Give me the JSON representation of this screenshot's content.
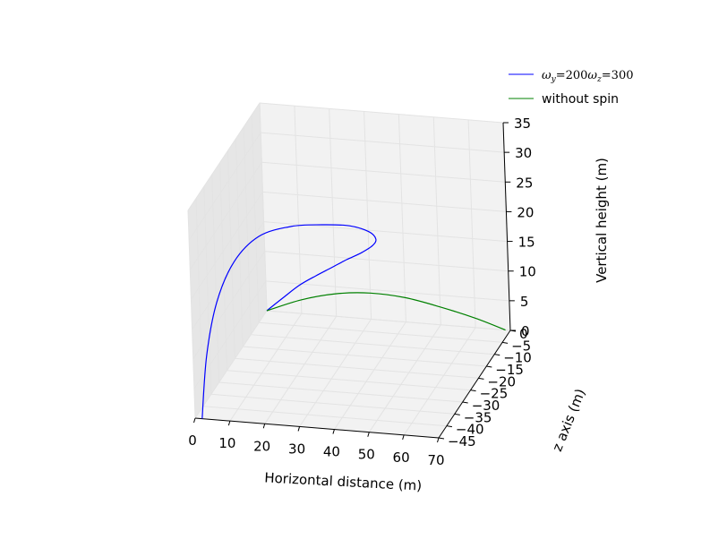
{
  "chart_data": {
    "type": "line",
    "projection": "3d",
    "title": "",
    "xlabel": "Horizontal distance (m)",
    "ylabel": "z axis (m)",
    "zlabel": "Vertical height (m)",
    "xlim": [
      0,
      70
    ],
    "ylim": [
      -45,
      0
    ],
    "zlim": [
      0,
      35
    ],
    "x_ticks": [
      "0",
      "10",
      "20",
      "30",
      "40",
      "50",
      "60",
      "70"
    ],
    "y_ticks": [
      "0",
      "−5",
      "−10",
      "−15",
      "−20",
      "−25",
      "−30",
      "−35",
      "−40",
      "−45"
    ],
    "z_ticks": [
      "0",
      "5",
      "10",
      "15",
      "20",
      "25",
      "30",
      "35"
    ],
    "grid": true,
    "legend_position": "top-right",
    "series": [
      {
        "name": "ω_y =200ω_z =300",
        "legend_label": "ωy=200ωz=300",
        "color": "#0000ff",
        "x": [
          0,
          5,
          10,
          15,
          20,
          25,
          30,
          34,
          36,
          35,
          31,
          25,
          18,
          11,
          6,
          3,
          2,
          2
        ],
        "y": [
          0,
          0,
          -0.5,
          -1,
          -2,
          -3,
          -4.5,
          -6,
          -8,
          -10,
          -13,
          -17,
          -21,
          -26,
          -31,
          -36,
          -41,
          -45
        ],
        "z": [
          0,
          2.5,
          5,
          7,
          9,
          11,
          13,
          15,
          17,
          19,
          21,
          22.5,
          23.5,
          23.5,
          21,
          16,
          9,
          0
        ]
      },
      {
        "name": "without spin",
        "color": "#008000",
        "x": [
          0,
          10,
          20,
          30,
          40,
          50,
          60,
          68.6
        ],
        "y": [
          0,
          0,
          0,
          0,
          0,
          0,
          0,
          0
        ],
        "z": [
          0,
          2.3,
          3.8,
          4.4,
          4.1,
          3.0,
          1.6,
          0
        ]
      }
    ]
  },
  "legend": {
    "series1_parts": [
      "ω",
      "y",
      "=200",
      "ω",
      "z",
      "=300"
    ],
    "series2_label": "without spin"
  }
}
